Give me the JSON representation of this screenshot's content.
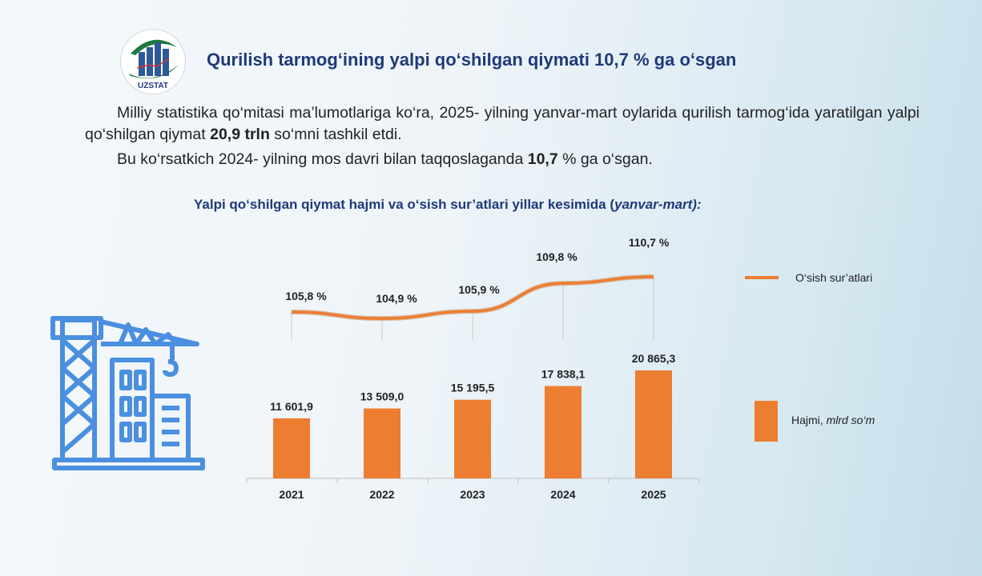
{
  "header": {
    "title": "Qurilish tarmog‘ining yalpi qo‘shilgan qiymati 10,7 % ga o‘sgan",
    "logo_text": "UZSTAT"
  },
  "body": {
    "p1_a": "Milliy statistika qo‘mitasi ma’lumotlariga ko‘ra, 2025- yilning yanvar-mart oylarida qurilish tarmog‘ida yaratilgan yalpi qo‘shilgan qiymat ",
    "p1_bold": "20,9 trln",
    "p1_b": " so‘mni tashkil etdi.",
    "p2_a": "Bu ko‘rsatkich  2024- yilning  mos davri bilan taqqoslaganda ",
    "p2_bold": "10,7",
    "p2_b": " % ga o‘sgan."
  },
  "chart_subtitle": {
    "main": "Yalpi qo‘shilgan qiymat hajmi va o‘sish sur’atlari yillar kesimida (",
    "italic": "yanvar-mart):"
  },
  "chart_data": {
    "type": "bar+line",
    "categories": [
      "2021",
      "2022",
      "2023",
      "2024",
      "2025"
    ],
    "series": [
      {
        "name": "Hajmi, mlrd so‘m",
        "type": "bar",
        "color": "#ed7d31",
        "values": [
          11601.9,
          13509.0,
          15195.5,
          17838.1,
          20865.3
        ],
        "labels": [
          "11 601,9",
          "13 509,0",
          "15 195,5",
          "17 838,1",
          "20 865,3"
        ]
      },
      {
        "name": "O‘sish sur’atlari",
        "type": "line",
        "color": "#ed7d31",
        "values": [
          105.8,
          104.9,
          105.9,
          109.8,
          110.7
        ],
        "labels": [
          "105,8 %",
          "104,9 %",
          "105,9 %",
          "109,8 %",
          "110,7 %"
        ]
      }
    ],
    "legend": {
      "line_label": "O‘sish sur’atlari",
      "bar_label_a": "Hajmi, ",
      "bar_label_b": "mlrd so‘m",
      "placement": "right"
    },
    "grid": false
  }
}
